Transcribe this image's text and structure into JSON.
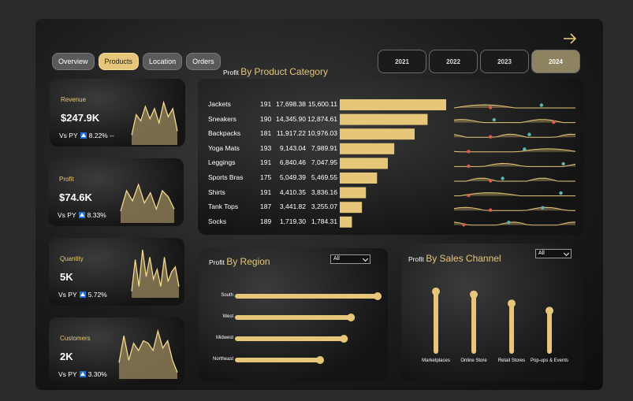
{
  "nav": {
    "tabs": [
      {
        "label": "Overview",
        "active": false
      },
      {
        "label": "Products",
        "active": true
      },
      {
        "label": "Location",
        "active": false
      },
      {
        "label": "Orders",
        "active": false
      }
    ],
    "years": [
      {
        "label": "2021",
        "active": false
      },
      {
        "label": "2022",
        "active": false
      },
      {
        "label": "2023",
        "active": false
      },
      {
        "label": "2024",
        "active": true
      }
    ],
    "next_icon": "arrow-right-icon"
  },
  "kpis": [
    {
      "label": "Revenue",
      "value": "$247.9K",
      "vs_label": "Vs PY",
      "change": "8.22% --",
      "trend": [
        0.2,
        0.7,
        0.55,
        0.9,
        0.6,
        0.85,
        0.5,
        1.0,
        0.65,
        0.85,
        0.3
      ]
    },
    {
      "label": "Profit",
      "value": "$74.6K",
      "vs_label": "Vs PY",
      "change": "8.33%",
      "trend": [
        0.25,
        0.75,
        0.5,
        0.9,
        0.45,
        0.7,
        0.3,
        0.75,
        0.6,
        0.3
      ]
    },
    {
      "label": "Quantity",
      "value": "5K",
      "vs_label": "Vs PY",
      "change": "5.72%",
      "trend": [
        0.1,
        0.75,
        0.2,
        0.95,
        0.4,
        0.8,
        0.35,
        0.55,
        0.2,
        0.8,
        0.3,
        0.5,
        0.6,
        0.2
      ]
    },
    {
      "label": "Customers",
      "value": "2K",
      "vs_label": "Vs PY",
      "change": "3.30%",
      "trend": [
        0.3,
        0.85,
        0.35,
        0.7,
        0.55,
        0.75,
        0.7,
        0.55,
        0.95,
        0.6,
        0.75,
        0.35,
        0.1
      ]
    }
  ],
  "category": {
    "prefix": "Profit",
    "title": "By Product Category",
    "rows": [
      {
        "name": "Jackets",
        "count": "191",
        "revenue": "17,698.38",
        "profit": "15,600.11",
        "value": 15600.11
      },
      {
        "name": "Sneakers",
        "count": "190",
        "revenue": "14,345.90",
        "profit": "12,874.61",
        "value": 12874.61
      },
      {
        "name": "Backpacks",
        "count": "181",
        "revenue": "11,917.22",
        "profit": "10,976.03",
        "value": 10976.03
      },
      {
        "name": "Yoga Mats",
        "count": "193",
        "revenue": "9,143.04",
        "profit": "7,989.91",
        "value": 7989.91
      },
      {
        "name": "Leggings",
        "count": "191",
        "revenue": "6,840.46",
        "profit": "7,047.95",
        "value": 7047.95
      },
      {
        "name": "Sports Bras",
        "count": "175",
        "revenue": "5,049.39",
        "profit": "5,469.55",
        "value": 5469.55
      },
      {
        "name": "Shirts",
        "count": "191",
        "revenue": "4,410.35",
        "profit": "3,836.16",
        "value": 3836.16
      },
      {
        "name": "Tank Tops",
        "count": "187",
        "revenue": "3,441.82",
        "profit": "3,255.07",
        "value": 3255.07
      },
      {
        "name": "Socks",
        "count": "189",
        "revenue": "1,719.30",
        "profit": "1,784.31",
        "value": 1784.31
      }
    ],
    "spark_low": [
      0.3,
      0.82,
      0.3,
      0.12,
      0.12,
      0.3,
      0.12,
      0.3,
      0.08
    ],
    "spark_high": [
      0.72,
      0.33,
      0.62,
      0.58,
      0.9,
      0.4,
      0.88,
      0.73,
      0.45
    ]
  },
  "region": {
    "prefix": "Profit",
    "title": "By Region",
    "filter": "All",
    "rows": [
      {
        "name": "South",
        "value": 100
      },
      {
        "name": "West",
        "value": 81
      },
      {
        "name": "Midwest",
        "value": 76
      },
      {
        "name": "Northeast",
        "value": 59
      }
    ]
  },
  "channel": {
    "prefix": "Profit",
    "title": "By Sales Channel",
    "filter": "All",
    "items": [
      {
        "name": "Marketplaces",
        "value": 100
      },
      {
        "name": "Online Store",
        "value": 95
      },
      {
        "name": "Retail Stores",
        "value": 80
      },
      {
        "name": "Pop-ups & Events",
        "value": 68
      }
    ]
  },
  "colors": {
    "accent": "#e6c77a",
    "dark": "#141414",
    "low_marker": "#e05a4e",
    "high_marker": "#5ab6b0"
  }
}
